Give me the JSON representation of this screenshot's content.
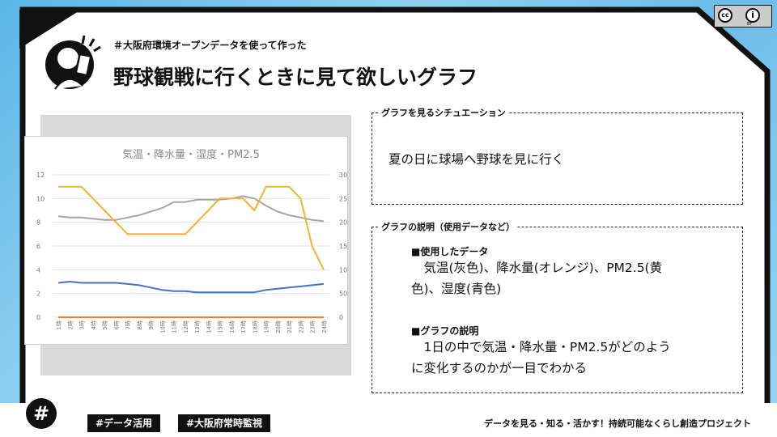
{
  "header": {
    "tagline": "＃大阪府環境オープンデータを使って作った",
    "title": "野球観戦に行くときに見て欲しいグラフ"
  },
  "license": {
    "cc": "cc",
    "by": "BY"
  },
  "situation": {
    "label": "グラフを見るシチュエーション",
    "text": "夏の日に球場へ野球を見に行く"
  },
  "description": {
    "label": "グラフの説明（使用データなど）",
    "data_heading": "■使用したデータ",
    "data_line1": "　気温(灰色)、降水量(オレンジ)、PM2.5(黄",
    "data_line2": "色)、湿度(青色)",
    "explain_heading": "■グラフの説明",
    "explain_line1": "　1日の中で気温・降水量・PM2.5がどのよう",
    "explain_line2": "に変化するのかが一目でわかる"
  },
  "footer": {
    "hash": "#",
    "tag1": "#データ活用",
    "tag2": "#大阪府常時監視",
    "project": "データを見る・知る・活かす！持続可能なくらし創造プロジェクト"
  },
  "chart_data": {
    "type": "line",
    "title": "気温・降水量・湿度・PM2.5",
    "categories": [
      "1時",
      "2時",
      "3時",
      "4時",
      "5時",
      "6時",
      "7時",
      "8時",
      "9時",
      "10時",
      "11時",
      "12時",
      "13時",
      "14時",
      "15時",
      "16時",
      "17時",
      "18時",
      "19時",
      "20時",
      "21時",
      "22時",
      "23時",
      "24時"
    ],
    "y_left": {
      "min": 0,
      "max": 12,
      "ticks": [
        0,
        2,
        4,
        6,
        8,
        10,
        12
      ]
    },
    "y_right": {
      "min": 0,
      "max": 300,
      "ticks": [
        0,
        50,
        100,
        150,
        200,
        250,
        300
      ]
    },
    "grid": true,
    "series": [
      {
        "color": "#a6a6a6",
        "axis": "left",
        "values": [
          8.5,
          8.4,
          8.4,
          8.3,
          8.2,
          8.2,
          8.4,
          8.6,
          8.9,
          9.2,
          9.7,
          9.7,
          9.9,
          9.9,
          9.9,
          10,
          10.2,
          10,
          9.4,
          8.9,
          8.6,
          8.4,
          8.2,
          8.1
        ]
      },
      {
        "color": "#f2b32e",
        "axis": "right",
        "values": [
          275,
          275,
          275,
          250,
          225,
          200,
          175,
          175,
          175,
          175,
          175,
          175,
          200,
          225,
          250,
          250,
          250,
          225,
          275,
          275,
          275,
          250,
          150,
          100
        ]
      },
      {
        "color": "#4472c4",
        "axis": "left",
        "values": [
          2.9,
          3.0,
          2.9,
          2.9,
          2.9,
          2.9,
          2.8,
          2.7,
          2.5,
          2.3,
          2.2,
          2.2,
          2.1,
          2.1,
          2.1,
          2.1,
          2.1,
          2.1,
          2.3,
          2.4,
          2.5,
          2.6,
          2.7,
          2.8
        ]
      },
      {
        "color": "#ed7d31",
        "axis": "left",
        "values": [
          0,
          0,
          0,
          0,
          0,
          0,
          0,
          0,
          0,
          0,
          0,
          0,
          0,
          0,
          0,
          0,
          0,
          0,
          0,
          0,
          0,
          0,
          0,
          0
        ]
      }
    ]
  }
}
